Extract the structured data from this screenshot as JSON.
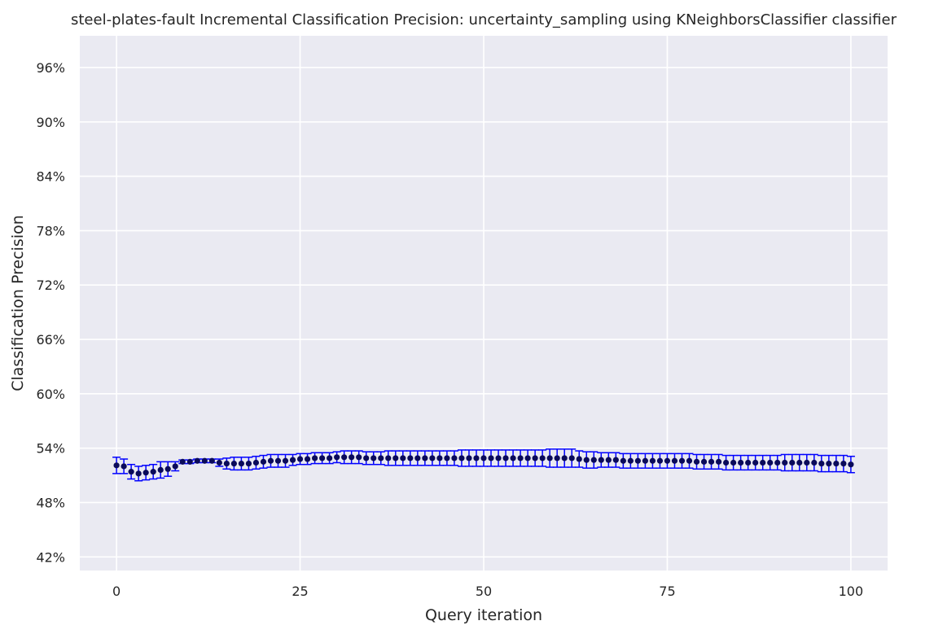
{
  "chart_data": {
    "type": "scatter",
    "title": "steel-plates-fault Incremental Classification Precision: uncertainty_sampling using KNeighborsClassifier classifier",
    "xlabel": "Query iteration",
    "ylabel": "Classification Precision",
    "xlim": [
      -5,
      105
    ],
    "ylim": [
      40.5,
      99.5
    ],
    "x_ticks": [
      0,
      25,
      50,
      75,
      100
    ],
    "x_tick_labels": [
      "0",
      "25",
      "50",
      "75",
      "100"
    ],
    "y_ticks": [
      42,
      48,
      54,
      60,
      66,
      72,
      78,
      84,
      90,
      96
    ],
    "y_tick_labels": [
      "42%",
      "48%",
      "54%",
      "60%",
      "66%",
      "72%",
      "78%",
      "84%",
      "90%",
      "96%"
    ],
    "grid": true,
    "legend": "none",
    "colors": {
      "background": "#eaeaf2",
      "grid": "#ffffff",
      "marker": "#0a0a5a",
      "errorbar": "#0000ff"
    },
    "series": [
      {
        "x": [
          0,
          1,
          2,
          3,
          4,
          5,
          6,
          7,
          8,
          9,
          10,
          11,
          12,
          13,
          14,
          15,
          16,
          17,
          18,
          19,
          20,
          21,
          22,
          23,
          24,
          25,
          26,
          27,
          28,
          29,
          30,
          31,
          32,
          33,
          34,
          35,
          36,
          37,
          38,
          39,
          40,
          41,
          42,
          43,
          44,
          45,
          46,
          47,
          48,
          49,
          50,
          51,
          52,
          53,
          54,
          55,
          56,
          57,
          58,
          59,
          60,
          61,
          62,
          63,
          64,
          65,
          66,
          67,
          68,
          69,
          70,
          71,
          72,
          73,
          74,
          75,
          76,
          77,
          78,
          79,
          80,
          81,
          82,
          83,
          84,
          85,
          86,
          87,
          88,
          89,
          90,
          91,
          92,
          93,
          94,
          95,
          96,
          97,
          98,
          99,
          100
        ],
        "y": [
          52.1,
          52.0,
          51.4,
          51.2,
          51.3,
          51.4,
          51.6,
          51.7,
          52.0,
          52.5,
          52.5,
          52.6,
          52.6,
          52.6,
          52.4,
          52.3,
          52.3,
          52.3,
          52.3,
          52.4,
          52.5,
          52.6,
          52.6,
          52.6,
          52.7,
          52.8,
          52.8,
          52.9,
          52.9,
          52.9,
          53.0,
          53.0,
          53.0,
          53.0,
          52.9,
          52.9,
          52.9,
          52.9,
          52.9,
          52.9,
          52.9,
          52.9,
          52.9,
          52.9,
          52.9,
          52.9,
          52.9,
          52.9,
          52.9,
          52.9,
          52.9,
          52.9,
          52.9,
          52.9,
          52.9,
          52.9,
          52.9,
          52.9,
          52.9,
          52.9,
          52.9,
          52.9,
          52.9,
          52.8,
          52.7,
          52.7,
          52.7,
          52.7,
          52.7,
          52.6,
          52.6,
          52.6,
          52.6,
          52.6,
          52.6,
          52.6,
          52.6,
          52.6,
          52.6,
          52.5,
          52.5,
          52.5,
          52.5,
          52.4,
          52.4,
          52.4,
          52.4,
          52.4,
          52.4,
          52.4,
          52.4,
          52.4,
          52.4,
          52.4,
          52.4,
          52.4,
          52.3,
          52.3,
          52.3,
          52.3,
          52.2
        ],
        "err": [
          0.9,
          0.8,
          0.8,
          0.8,
          0.8,
          0.8,
          0.9,
          0.8,
          0.5,
          0.2,
          0.2,
          0.2,
          0.2,
          0.2,
          0.4,
          0.6,
          0.7,
          0.7,
          0.7,
          0.7,
          0.7,
          0.7,
          0.7,
          0.7,
          0.6,
          0.6,
          0.6,
          0.6,
          0.6,
          0.6,
          0.6,
          0.7,
          0.7,
          0.7,
          0.7,
          0.7,
          0.7,
          0.8,
          0.8,
          0.8,
          0.8,
          0.8,
          0.8,
          0.8,
          0.8,
          0.8,
          0.8,
          0.9,
          0.9,
          0.9,
          0.9,
          0.9,
          0.9,
          0.9,
          0.9,
          0.9,
          0.9,
          0.9,
          0.9,
          1.0,
          1.0,
          1.0,
          1.0,
          0.9,
          0.9,
          0.9,
          0.8,
          0.8,
          0.8,
          0.8,
          0.8,
          0.8,
          0.8,
          0.8,
          0.8,
          0.8,
          0.8,
          0.8,
          0.8,
          0.8,
          0.8,
          0.8,
          0.8,
          0.8,
          0.8,
          0.8,
          0.8,
          0.8,
          0.8,
          0.8,
          0.8,
          0.9,
          0.9,
          0.9,
          0.9,
          0.9,
          0.9,
          0.9,
          0.9,
          0.9,
          0.9
        ]
      }
    ]
  }
}
